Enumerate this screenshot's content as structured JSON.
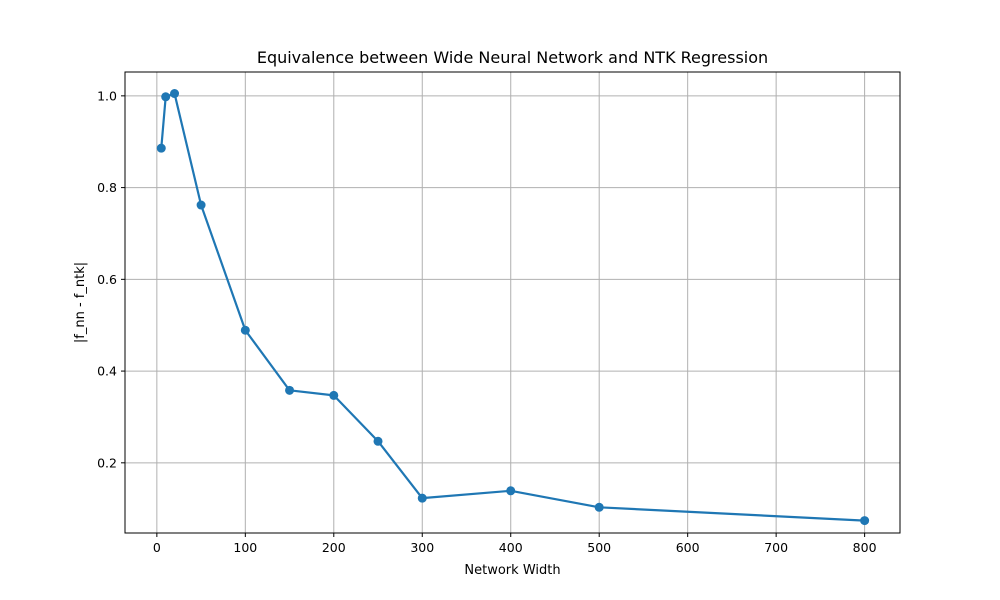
{
  "chart_data": {
    "type": "line",
    "title": "Equivalence between Wide Neural Network and NTK Regression",
    "xlabel": "Network Width",
    "ylabel": "|f_nn - f_ntk|",
    "xlim": [
      -36,
      840
    ],
    "ylim": [
      0.047,
      1.052
    ],
    "xticks": [
      0,
      100,
      200,
      300,
      400,
      500,
      600,
      700,
      800
    ],
    "yticks": [
      0.2,
      0.4,
      0.6,
      0.8,
      1.0
    ],
    "ytick_labels": [
      "0.2",
      "0.4",
      "0.6",
      "0.8",
      "1.0"
    ],
    "grid": true,
    "series": [
      {
        "color": "#1f77b4",
        "marker": "circle",
        "x": [
          5,
          10,
          20,
          50,
          100,
          150,
          200,
          250,
          300,
          400,
          500,
          800
        ],
        "y": [
          0.886,
          0.998,
          1.005,
          0.762,
          0.489,
          0.358,
          0.347,
          0.247,
          0.123,
          0.139,
          0.103,
          0.074
        ]
      }
    ]
  }
}
